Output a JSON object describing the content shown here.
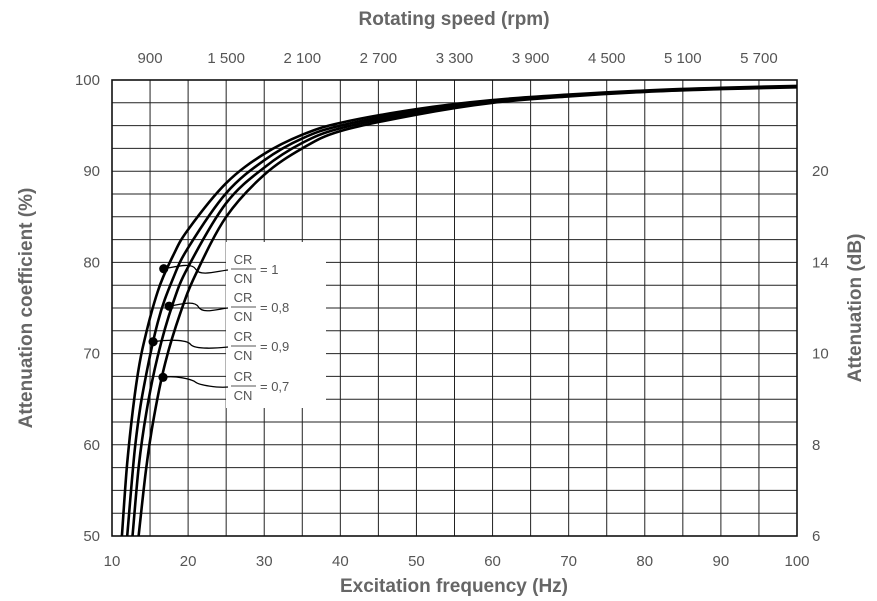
{
  "chart_data": {
    "type": "line",
    "title_top": "Rotating speed (rpm)",
    "xlabel": "Excitation frequency (Hz)",
    "ylabel_left": "Attenuation coefficient (%)",
    "ylabel_right": "Attenuation (dB)",
    "xlim": [
      10,
      100
    ],
    "ylim": [
      50,
      100
    ],
    "grid": true,
    "x_ticks": [
      "10",
      "20",
      "30",
      "40",
      "50",
      "60",
      "70",
      "80",
      "90",
      "100"
    ],
    "x_tick_values": [
      10,
      20,
      30,
      40,
      50,
      60,
      70,
      80,
      90,
      100
    ],
    "y_ticks": [
      "50",
      "60",
      "70",
      "80",
      "90",
      "100"
    ],
    "y_tick_values": [
      50,
      60,
      70,
      80,
      90,
      100
    ],
    "top_ticks": [
      "900",
      "1 500",
      "2 100",
      "2 700",
      "3 300",
      "3 900",
      "4 500",
      "5 100",
      "5 700"
    ],
    "top_tick_values_hz": [
      15,
      25,
      35,
      45,
      55,
      65,
      75,
      85,
      95
    ],
    "right_ticks": [
      {
        "label": "6",
        "at_percent": 50
      },
      {
        "label": "8",
        "at_percent": 60
      },
      {
        "label": "10",
        "at_percent": 70
      },
      {
        "label": "14",
        "at_percent": 80
      },
      {
        "label": "20",
        "at_percent": 90
      }
    ],
    "legend": {
      "fraction_numerator": "CR",
      "fraction_denominator": "CN",
      "entries": [
        "= 1",
        "= 0,8",
        "= 0,9",
        "= 0,7"
      ]
    },
    "series": [
      {
        "id": "cr1",
        "x": [
          11.3,
          12,
          13,
          14,
          16,
          18,
          20,
          25,
          30,
          35,
          40,
          50,
          60,
          70,
          80,
          90,
          100
        ],
        "y": [
          50,
          58,
          65.5,
          70.5,
          76.8,
          80.7,
          83.6,
          88.7,
          91.9,
          94.0,
          95.3,
          96.8,
          97.8,
          98.4,
          98.85,
          99.15,
          99.35
        ]
      },
      {
        "id": "cr08",
        "x": [
          12.0,
          13,
          14,
          16,
          18,
          20,
          25,
          30,
          35,
          40,
          50,
          60,
          70,
          80,
          90,
          100
        ],
        "y": [
          50,
          59.5,
          65.5,
          73.4,
          78.2,
          81.6,
          87.6,
          91.2,
          93.6,
          95.0,
          96.6,
          97.7,
          98.35,
          98.8,
          99.1,
          99.3
        ]
      },
      {
        "id": "cr09",
        "x": [
          12.7,
          13.5,
          14.5,
          16,
          18,
          20,
          25,
          30,
          35,
          40,
          50,
          60,
          70,
          80,
          90,
          100
        ],
        "y": [
          50,
          57.5,
          63.5,
          69.7,
          75.5,
          79.5,
          86.5,
          90.4,
          93.1,
          94.7,
          96.4,
          97.6,
          98.3,
          98.75,
          99.05,
          99.25
        ]
      },
      {
        "id": "cr07",
        "x": [
          13.5,
          14.5,
          15.5,
          17,
          19,
          21,
          25,
          30,
          35,
          40,
          50,
          60,
          70,
          80,
          90,
          100
        ],
        "y": [
          50,
          57.5,
          63,
          69,
          74.5,
          78.7,
          85.0,
          89.6,
          92.5,
          94.4,
          96.2,
          97.5,
          98.2,
          98.7,
          99.0,
          99.2
        ]
      }
    ],
    "markers": [
      {
        "x": 16.8,
        "y": 79.3,
        "legend_index": 0
      },
      {
        "x": 17.5,
        "y": 75.2,
        "legend_index": 1
      },
      {
        "x": 15.4,
        "y": 71.3,
        "legend_index": 2
      },
      {
        "x": 16.7,
        "y": 67.4,
        "legend_index": 3
      }
    ]
  }
}
